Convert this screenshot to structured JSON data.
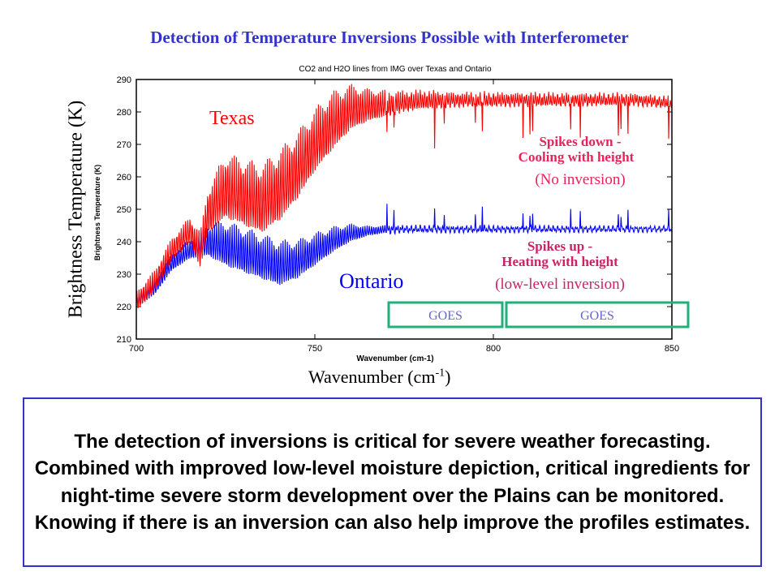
{
  "slide": {
    "title": "Detection of Temperature Inversions Possible with Interferometer",
    "y_label": "Brightness Temperature (K)",
    "x_label_main": "Wavenumber (cm",
    "x_label_sup": "-1",
    "x_label_end": ")",
    "body_text": "The detection of inversions is critical for severe weather forecasting.  Combined with improved low-level moisture depiction, critical ingredients for night-time severe storm development over the Plains can be monitored. Knowing if there is an inversion can also help improve the profiles estimates."
  },
  "annotations": {
    "texas": "Texas",
    "ontario": "Ontario",
    "spikes_down_1": "Spikes down -",
    "spikes_down_2": "Cooling with height",
    "no_inversion": "(No inversion)",
    "spikes_up_1": "Spikes up -",
    "spikes_up_2": "Heating with height",
    "low_level_inversion": "(low-level inversion)",
    "goes_1": "GOES",
    "goes_2": "GOES"
  },
  "colors": {
    "title": "#3333cc",
    "texas": "#ff0000",
    "ontario": "#0000ff",
    "spikes_down": "#e4245a",
    "spikes_up": "#cc2266",
    "goes_box": "#22b07a",
    "goes_text": "#6666cc",
    "panel_border": "#3333cc"
  },
  "chart_data": {
    "type": "line",
    "title": "CO2 and H2O lines from IMG over Texas and Ontario",
    "xlabel": "Wavenumber (cm-1)",
    "ylabel": "Brightness Temperature (K)",
    "xlim": [
      700,
      850
    ],
    "ylim": [
      210,
      290
    ],
    "x_ticks": [
      700,
      750,
      800,
      850
    ],
    "y_ticks": [
      210,
      220,
      230,
      240,
      250,
      260,
      270,
      280,
      290
    ],
    "grid": false,
    "series": [
      {
        "name": "Texas",
        "color": "#ff0000",
        "baseline": [
          [
            700,
            222
          ],
          [
            705,
            228
          ],
          [
            710,
            238
          ],
          [
            715,
            244
          ],
          [
            718,
            238
          ],
          [
            720,
            250
          ],
          [
            725,
            258
          ],
          [
            730,
            256
          ],
          [
            735,
            254
          ],
          [
            740,
            258
          ],
          [
            745,
            264
          ],
          [
            750,
            272
          ],
          [
            755,
            278
          ],
          [
            760,
            282
          ],
          [
            770,
            283
          ],
          [
            780,
            284
          ],
          [
            800,
            284
          ],
          [
            820,
            284
          ],
          [
            840,
            284
          ],
          [
            850,
            283
          ]
        ],
        "modulation": [
          [
            700,
            6
          ],
          [
            715,
            8
          ],
          [
            725,
            20
          ],
          [
            740,
            22
          ],
          [
            755,
            18
          ],
          [
            765,
            10
          ],
          [
            775,
            6
          ],
          [
            790,
            4
          ],
          [
            850,
            3
          ]
        ]
      },
      {
        "name": "Ontario",
        "color": "#0000ff",
        "baseline": [
          [
            700,
            222
          ],
          [
            705,
            226
          ],
          [
            710,
            234
          ],
          [
            715,
            238
          ],
          [
            720,
            241
          ],
          [
            725,
            240
          ],
          [
            730,
            238
          ],
          [
            735,
            236
          ],
          [
            740,
            234
          ],
          [
            745,
            235
          ],
          [
            750,
            238
          ],
          [
            755,
            241
          ],
          [
            760,
            243
          ],
          [
            770,
            244
          ],
          [
            780,
            244
          ],
          [
            800,
            244
          ],
          [
            820,
            244
          ],
          [
            840,
            244
          ],
          [
            850,
            244
          ]
        ],
        "modulation": [
          [
            700,
            4
          ],
          [
            715,
            6
          ],
          [
            725,
            14
          ],
          [
            740,
            14
          ],
          [
            755,
            8
          ],
          [
            765,
            3
          ],
          [
            775,
            1.5
          ],
          [
            850,
            1
          ]
        ]
      }
    ]
  }
}
